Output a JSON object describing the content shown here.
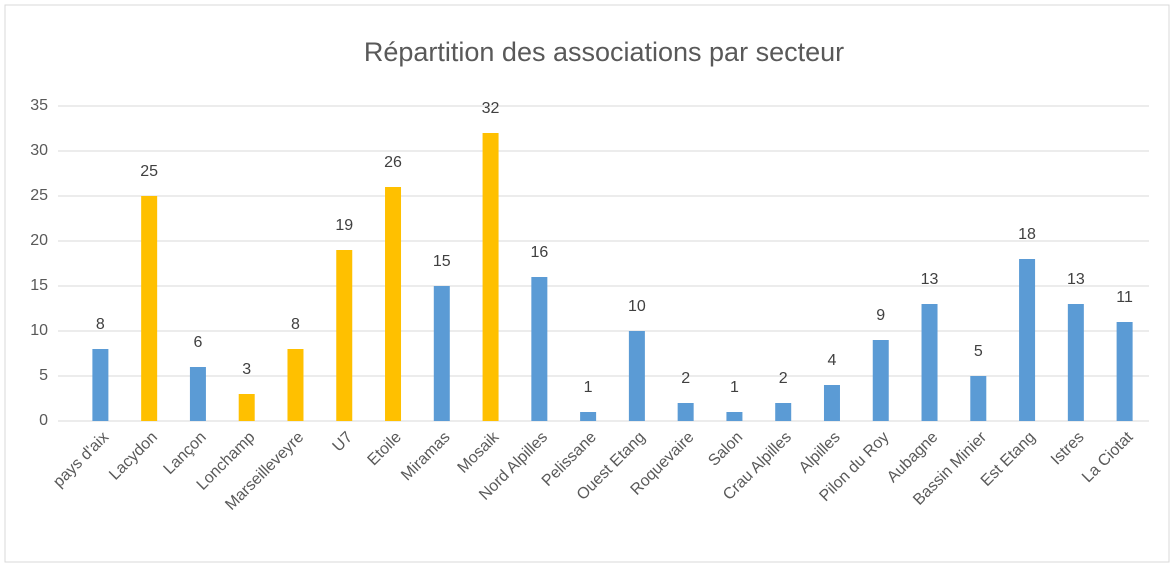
{
  "chart_data": {
    "type": "bar",
    "title": "Répartition des associations par secteur",
    "categories": [
      "pays d'aix",
      "Lacydon",
      "Lançon",
      "Lonchamp",
      "Marseilleveyre",
      "U7",
      "Etoile",
      "Miramas",
      "Mosaik",
      "Nord Alpilles",
      "Pelissane",
      "Ouest Etang",
      "Roquevaire",
      "Salon",
      "Crau Alpilles",
      "Alpilles",
      "Pilon du Roy",
      "Aubagne",
      "Bassin Minier",
      "Est Etang",
      "Istres",
      "La Ciotat"
    ],
    "values": [
      8,
      25,
      6,
      3,
      8,
      19,
      26,
      15,
      32,
      16,
      1,
      10,
      2,
      1,
      2,
      4,
      9,
      13,
      5,
      18,
      13,
      11
    ],
    "colors": [
      "#5b9bd5",
      "#ffc000",
      "#5b9bd5",
      "#ffc000",
      "#ffc000",
      "#ffc000",
      "#ffc000",
      "#5b9bd5",
      "#ffc000",
      "#5b9bd5",
      "#5b9bd5",
      "#5b9bd5",
      "#5b9bd5",
      "#5b9bd5",
      "#5b9bd5",
      "#5b9bd5",
      "#5b9bd5",
      "#5b9bd5",
      "#5b9bd5",
      "#5b9bd5",
      "#5b9bd5",
      "#5b9bd5"
    ],
    "ylim": [
      0,
      35
    ],
    "yticks": [
      0,
      5,
      10,
      15,
      20,
      25,
      30,
      35
    ],
    "grid": true
  }
}
